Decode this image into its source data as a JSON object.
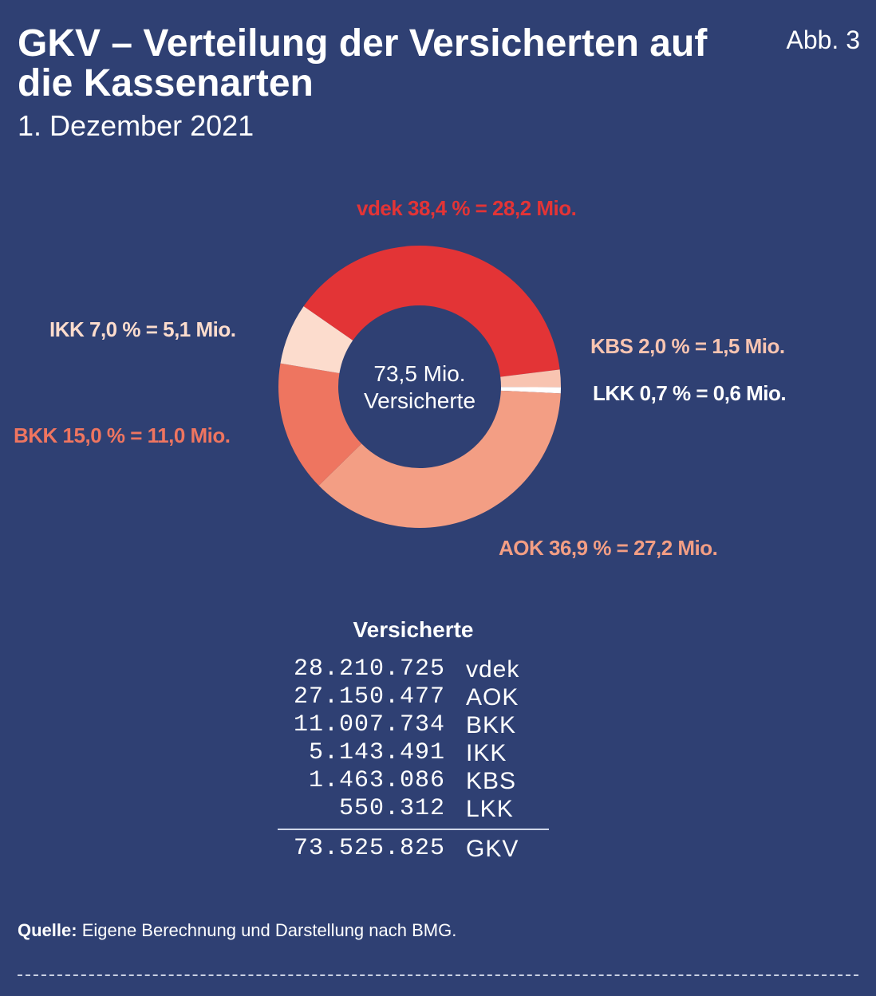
{
  "header": {
    "title": "GKV – Verteilung der Versicherten auf die Kassenarten",
    "subtitle": "1. Dezember 2021",
    "figure_label": "Abb. 3"
  },
  "center": {
    "value": "73,5 Mio.",
    "label": "Versicherte"
  },
  "chart_data": {
    "type": "pie",
    "title": "GKV – Verteilung der Versicherten auf die Kassenarten",
    "subtitle": "1. Dezember 2021",
    "donut": true,
    "slices": [
      {
        "name": "vdek",
        "percent": 38.4,
        "millions": 28.2,
        "label": "vdek 38,4 % = 28,2 Mio.",
        "color": "#e33436"
      },
      {
        "name": "KBS",
        "percent": 2.0,
        "millions": 1.5,
        "label": "KBS 2,0 % = 1,5 Mio.",
        "color": "#f8c4b1"
      },
      {
        "name": "LKK",
        "percent": 0.7,
        "millions": 0.6,
        "label": "LKK 0,7 % = 0,6 Mio.",
        "color": "#ffffff"
      },
      {
        "name": "AOK",
        "percent": 36.9,
        "millions": 27.2,
        "label": "AOK 36,9 % = 27,2 Mio.",
        "color": "#f39e84"
      },
      {
        "name": "BKK",
        "percent": 15.0,
        "millions": 11.0,
        "label": "BKK 15,0 % = 11,0 Mio.",
        "color": "#ee7560"
      },
      {
        "name": "IKK",
        "percent": 7.0,
        "millions": 5.1,
        "label": "IKK 7,0 % = 5,1 Mio.",
        "color": "#fcdccd"
      }
    ],
    "total_label": "73,5 Mio. Versicherte"
  },
  "table": {
    "heading": "Versicherte",
    "rows": [
      {
        "value": "28.210.725",
        "name": "vdek"
      },
      {
        "value": "27.150.477",
        "name": "AOK"
      },
      {
        "value": "11.007.734",
        "name": "BKK"
      },
      {
        "value": "5.143.491",
        "name": "IKK"
      },
      {
        "value": "1.463.086",
        "name": "KBS"
      },
      {
        "value": "550.312",
        "name": "LKK"
      }
    ],
    "total": {
      "value": "73.525.825",
      "name": "GKV"
    }
  },
  "source": {
    "prefix": "Quelle:",
    "text": " Eigene Berechnung und Darstellung nach BMG."
  }
}
